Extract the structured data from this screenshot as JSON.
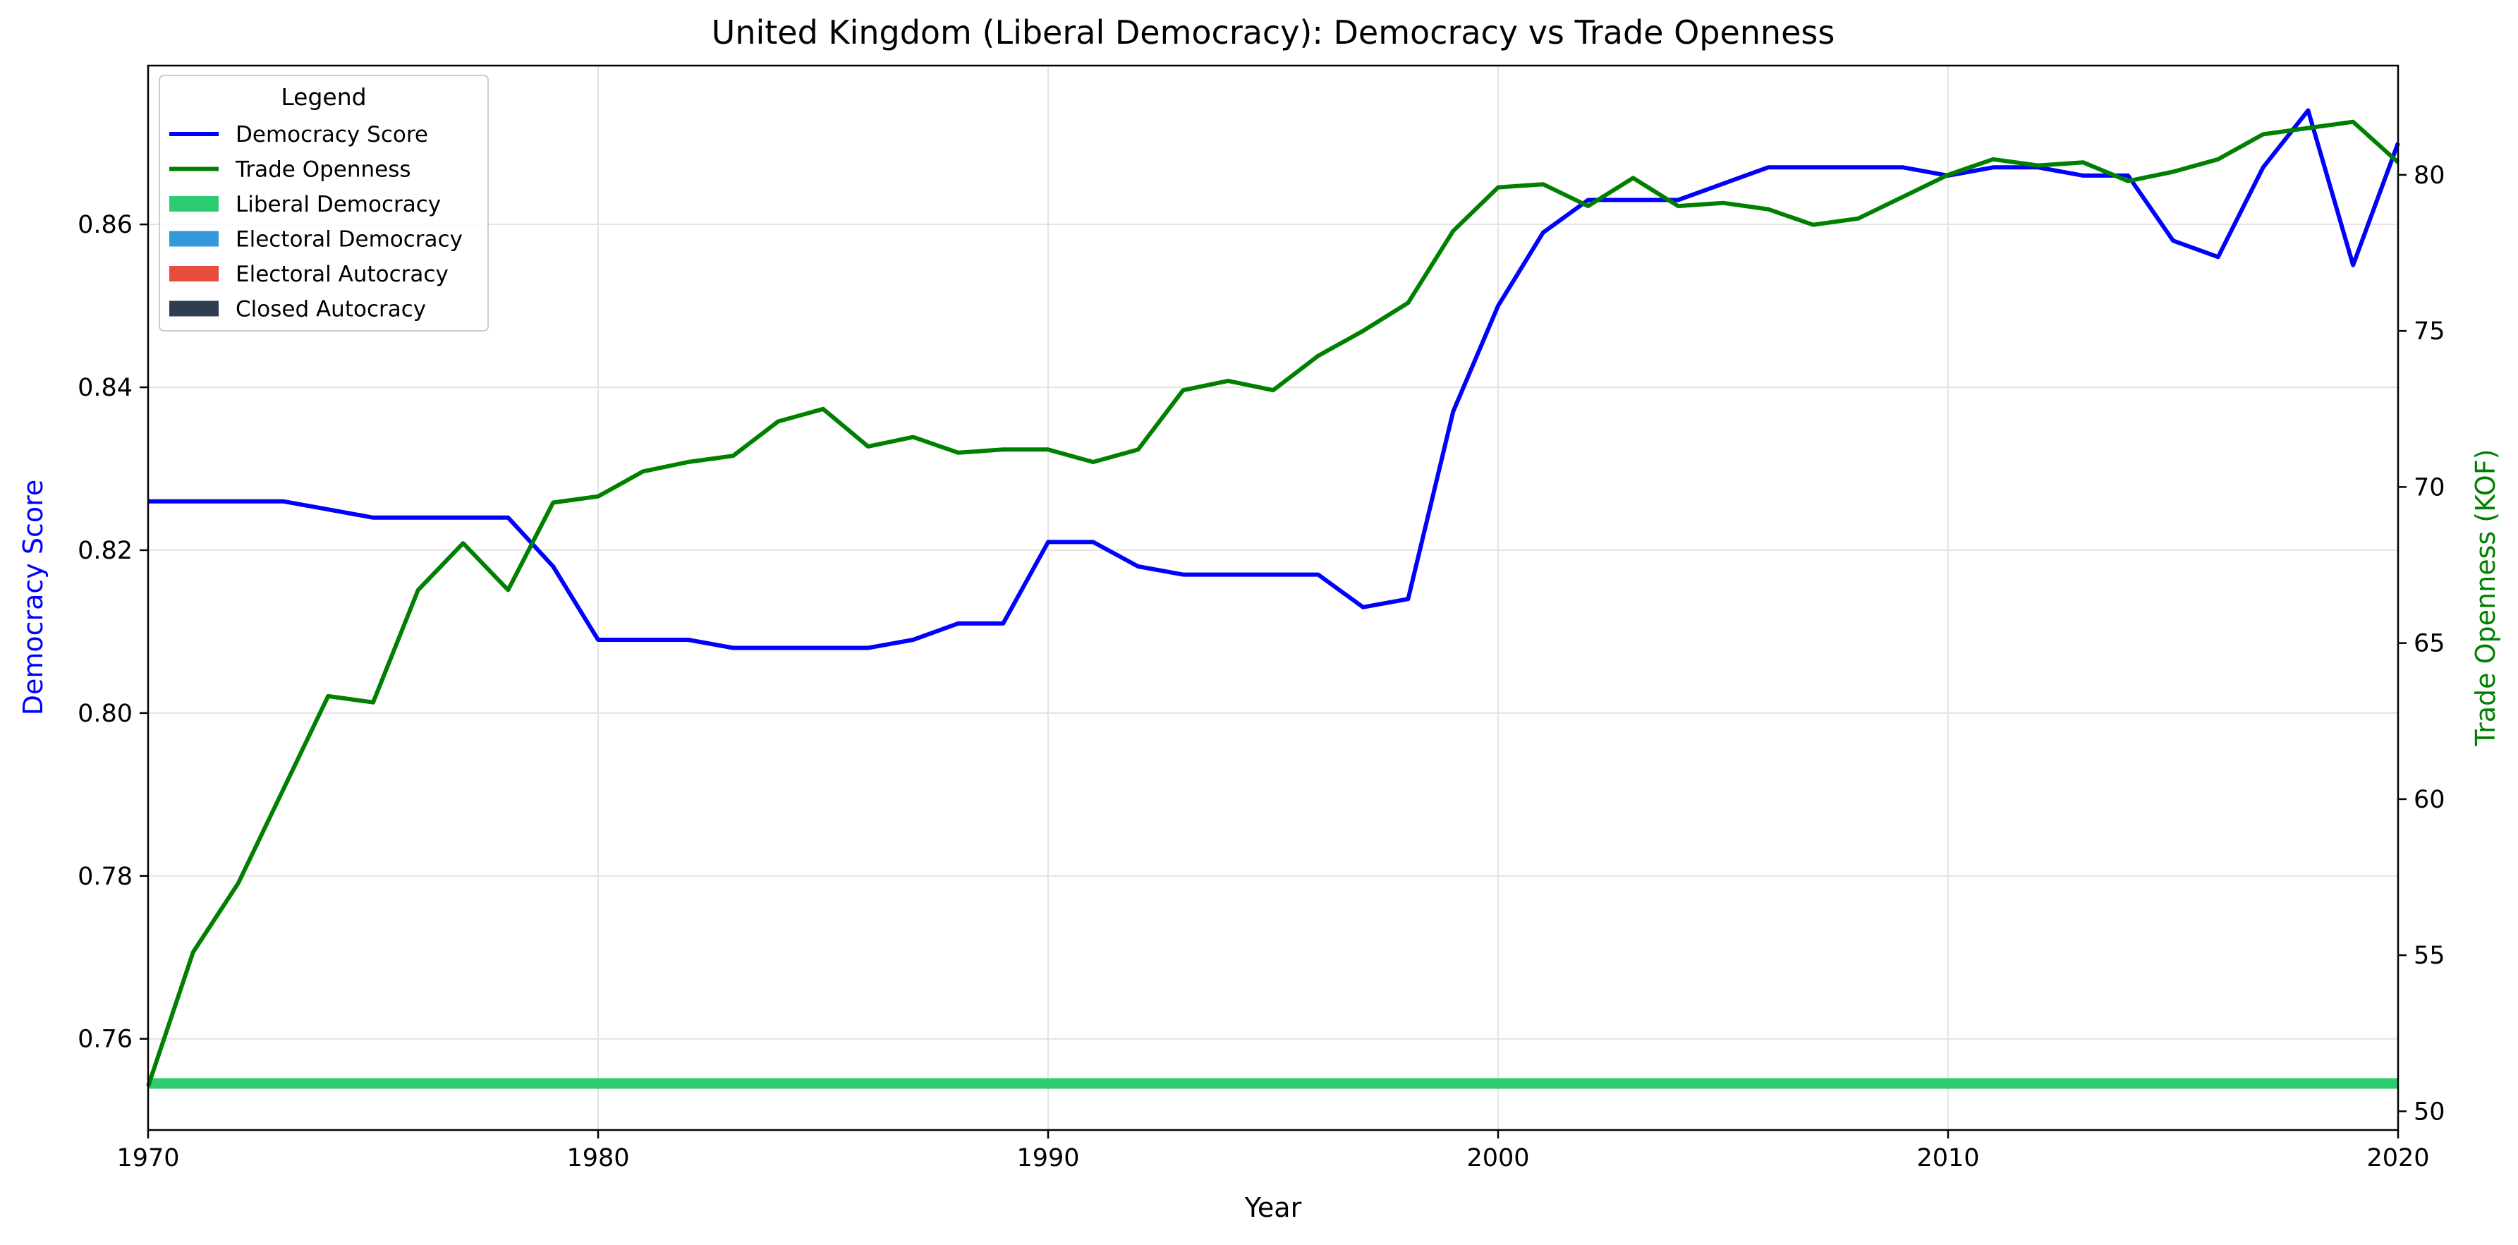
{
  "chart_data": {
    "type": "line",
    "title": "United Kingdom (Liberal Democracy): Democracy vs Trade Openness",
    "xlabel": "Year",
    "ylabel_left": "Democracy Score",
    "ylabel_right": "Trade Openness (KOF)",
    "xlim": [
      1970,
      2020
    ],
    "ylim_left": [
      0.7488,
      0.8795
    ],
    "ylim_right": [
      49.4,
      83.5
    ],
    "x_ticks": [
      1970,
      1980,
      1990,
      2000,
      2010,
      2020
    ],
    "y_ticks_left": [
      0.76,
      0.78,
      0.8,
      0.82,
      0.84,
      0.86
    ],
    "y_ticks_left_labels": [
      "0.76",
      "0.78",
      "0.80",
      "0.82",
      "0.84",
      "0.86"
    ],
    "y_ticks_right": [
      50,
      55,
      60,
      65,
      70,
      75,
      80
    ],
    "grid": true,
    "legend": {
      "title": "Legend",
      "position": "upper-left",
      "entries": [
        {
          "label": "Democracy Score",
          "kind": "line",
          "color": "#0000ff"
        },
        {
          "label": "Trade Openness",
          "kind": "line",
          "color": "#008000"
        },
        {
          "label": "Liberal Democracy",
          "kind": "patch",
          "color": "#2ecc71"
        },
        {
          "label": "Electoral Democracy",
          "kind": "patch",
          "color": "#3498db"
        },
        {
          "label": "Electoral Autocracy",
          "kind": "patch",
          "color": "#e74c3c"
        },
        {
          "label": "Closed Autocracy",
          "kind": "patch",
          "color": "#2c3e50"
        }
      ]
    },
    "x": [
      1970,
      1971,
      1972,
      1973,
      1974,
      1975,
      1976,
      1977,
      1978,
      1979,
      1980,
      1981,
      1982,
      1983,
      1984,
      1985,
      1986,
      1987,
      1988,
      1989,
      1990,
      1991,
      1992,
      1993,
      1994,
      1995,
      1996,
      1997,
      1998,
      1999,
      2000,
      2001,
      2002,
      2003,
      2004,
      2005,
      2006,
      2007,
      2008,
      2009,
      2010,
      2011,
      2012,
      2013,
      2014,
      2015,
      2016,
      2017,
      2018,
      2019,
      2020
    ],
    "series": [
      {
        "name": "Democracy Score",
        "axis": "left",
        "color": "#0000ff",
        "values": [
          0.826,
          0.826,
          0.826,
          0.826,
          0.825,
          0.824,
          0.824,
          0.824,
          0.824,
          0.818,
          0.809,
          0.809,
          0.809,
          0.808,
          0.808,
          0.808,
          0.808,
          0.809,
          0.811,
          0.811,
          0.821,
          0.821,
          0.818,
          0.817,
          0.817,
          0.817,
          0.817,
          0.813,
          0.814,
          0.837,
          0.85,
          0.859,
          0.863,
          0.863,
          0.863,
          0.865,
          0.867,
          0.867,
          0.867,
          0.867,
          0.866,
          0.867,
          0.867,
          0.866,
          0.866,
          0.858,
          0.856,
          0.867,
          0.874,
          0.855,
          0.87
        ]
      },
      {
        "name": "Trade Openness",
        "axis": "right",
        "color": "#008000",
        "values": [
          50.8,
          55.1,
          57.3,
          60.3,
          63.3,
          63.1,
          66.7,
          68.2,
          66.7,
          69.5,
          69.7,
          70.5,
          70.8,
          71.0,
          72.1,
          72.5,
          71.3,
          71.6,
          71.1,
          71.2,
          71.2,
          70.8,
          71.2,
          73.1,
          73.4,
          73.1,
          74.2,
          75.0,
          75.9,
          78.2,
          79.6,
          79.7,
          79.0,
          79.9,
          79.0,
          79.1,
          78.9,
          78.4,
          78.6,
          79.3,
          80.0,
          80.5,
          80.3,
          80.4,
          79.8,
          80.1,
          80.5,
          81.3,
          81.5,
          81.7,
          80.4
        ]
      }
    ],
    "regime_band": {
      "label": "Liberal Democracy",
      "color": "#2ecc71",
      "from": 1970,
      "to": 2020
    }
  }
}
